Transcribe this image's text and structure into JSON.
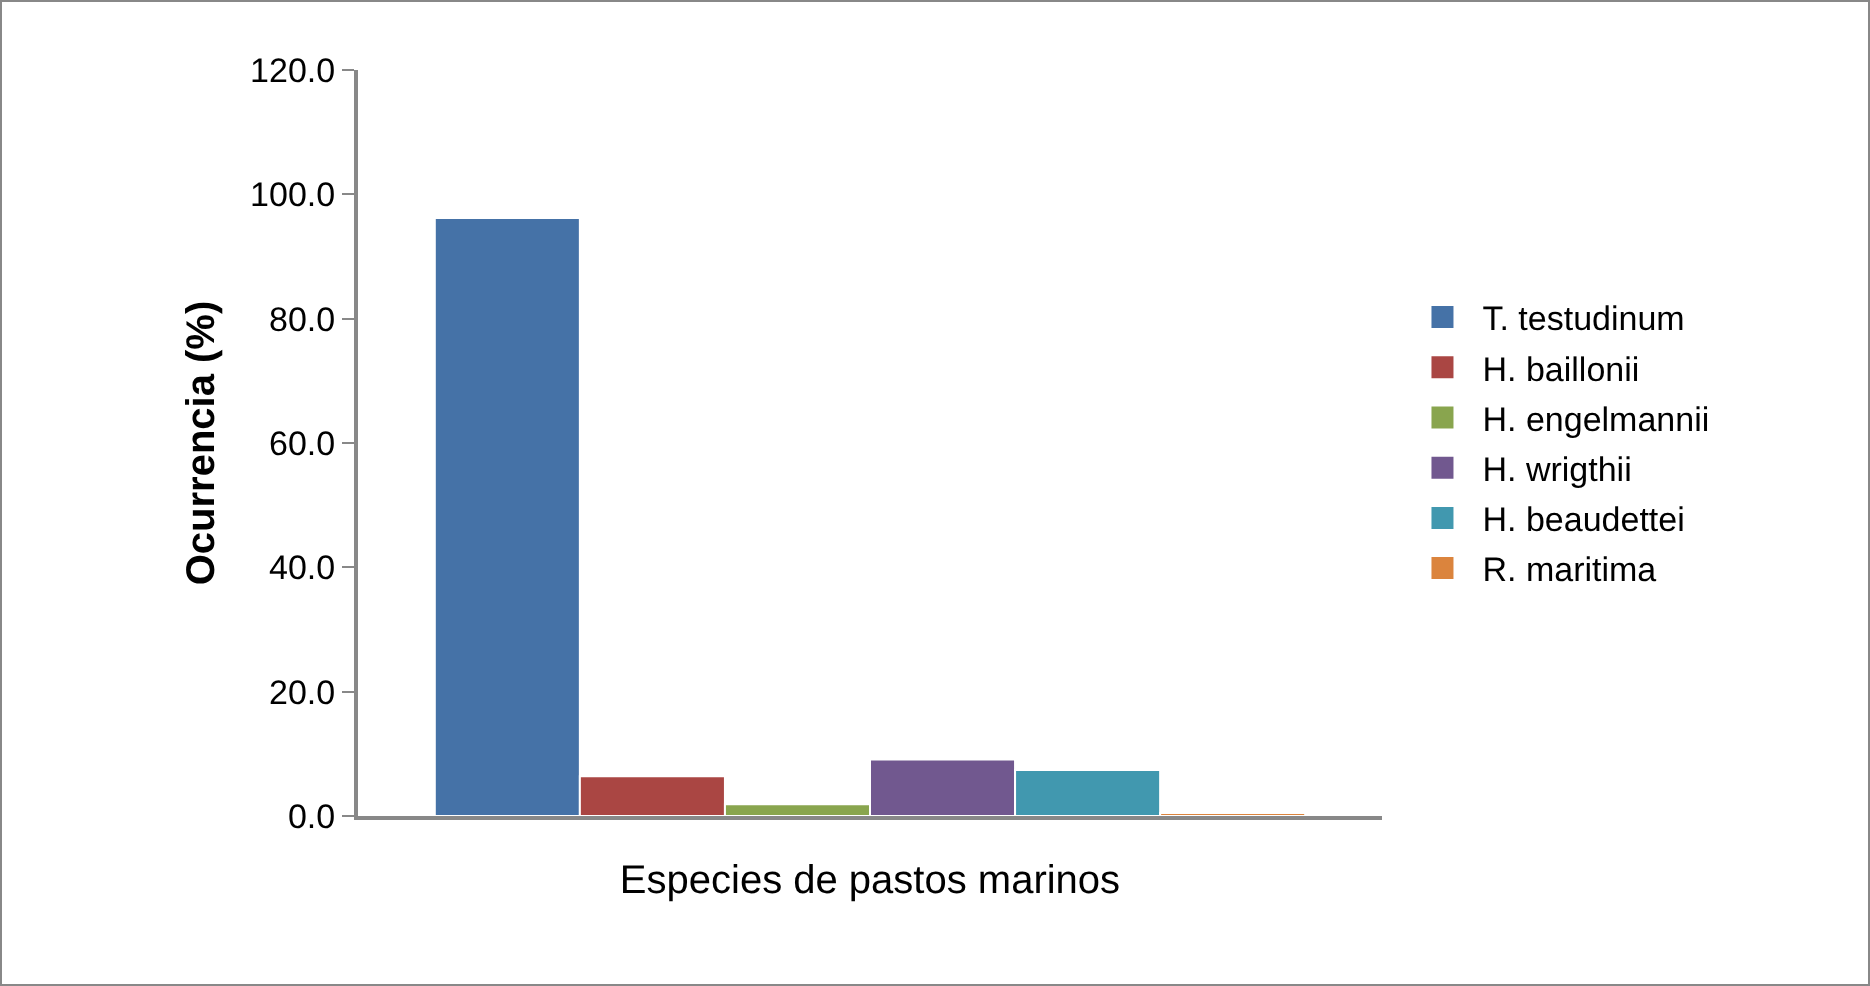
{
  "chart_data": {
    "type": "bar",
    "xlabel": "Especies de pastos marinos",
    "ylabel": "Ocurrencia (%)",
    "categories": [
      null
    ],
    "series": [
      {
        "name": "T. testudinum",
        "color": "#4572a7",
        "values": [
          96.2
        ]
      },
      {
        "name": "H. baillonii",
        "color": "#aa4643",
        "values": [
          6.4
        ]
      },
      {
        "name": "H. engelmannii",
        "color": "#89a54e",
        "values": [
          1.9
        ]
      },
      {
        "name": "H. wrigthii",
        "color": "#71588f",
        "values": [
          9.1
        ]
      },
      {
        "name": "H. beaudettei",
        "color": "#4198af",
        "values": [
          7.4
        ]
      },
      {
        "name": "R. maritima",
        "color": "#db843d",
        "values": [
          0.5
        ]
      }
    ],
    "ylim": [
      0,
      120
    ],
    "yticks": [
      {
        "value": 0,
        "label": "0.0"
      },
      {
        "value": 20,
        "label": "20.0"
      },
      {
        "value": 40,
        "label": "40.0"
      },
      {
        "value": 60,
        "label": "60.0"
      },
      {
        "value": 80,
        "label": "80.0"
      },
      {
        "value": 100,
        "label": "100.0"
      },
      {
        "value": 120,
        "label": "120.0"
      }
    ],
    "grid": false,
    "legend": "right"
  }
}
